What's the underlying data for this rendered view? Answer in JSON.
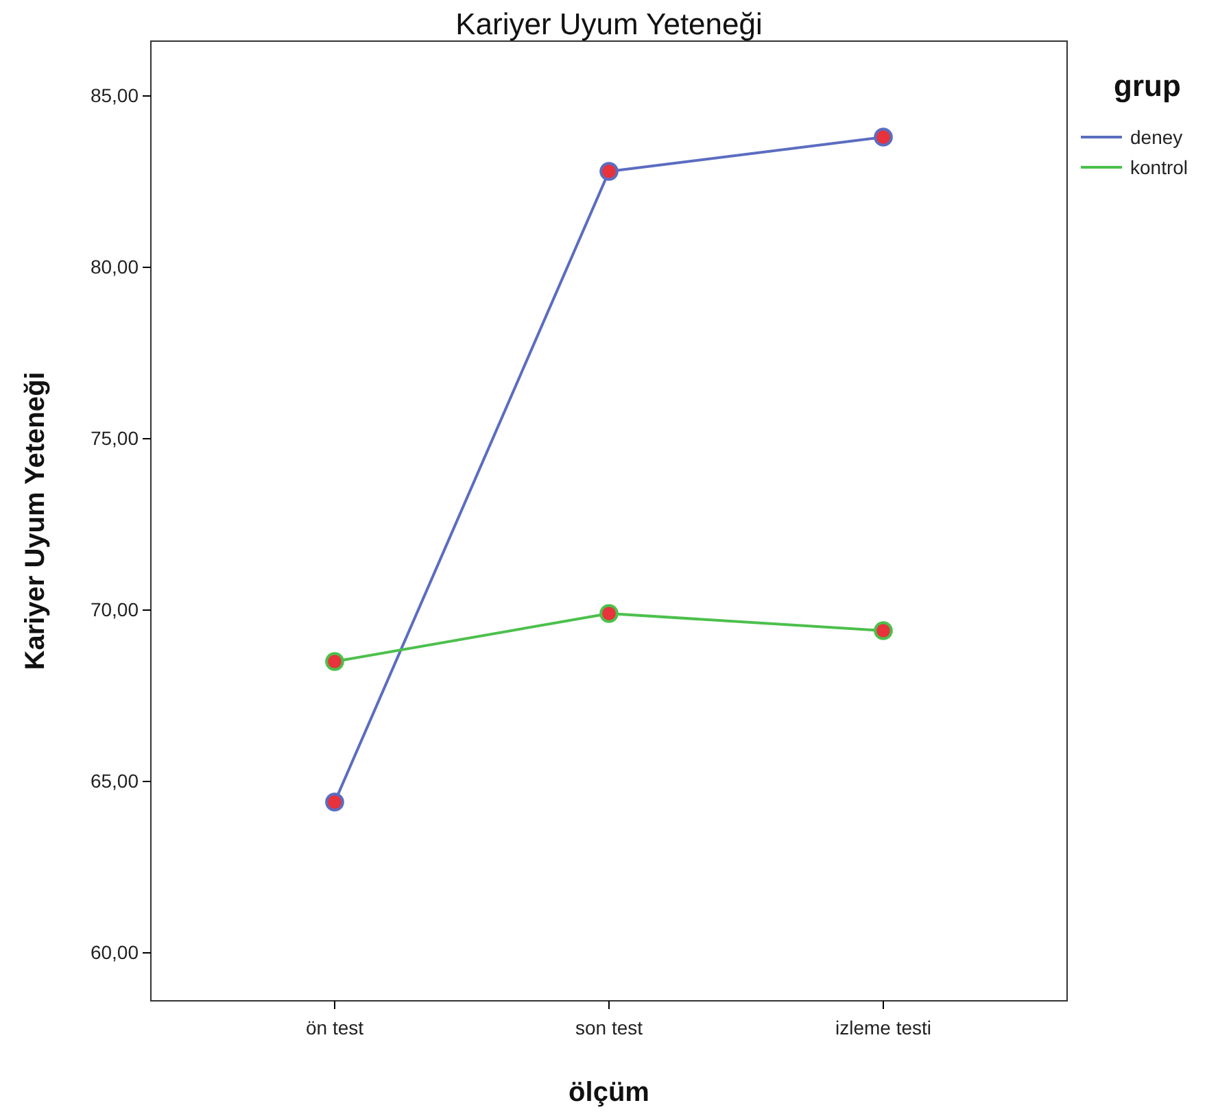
{
  "chart_data": {
    "type": "line",
    "title": "Kariyer Uyum Yeteneği",
    "xlabel": "ölçüm",
    "ylabel": "Kariyer Uyum Yeteneği",
    "legend_title": "grup",
    "categories": [
      "ön test",
      "son test",
      "izleme testi"
    ],
    "series": [
      {
        "name": "deney",
        "color": "#5b6dc0",
        "values": [
          64.4,
          82.8,
          83.8
        ]
      },
      {
        "name": "kontrol",
        "color": "#4cc04c",
        "values": [
          68.5,
          69.9,
          69.4
        ]
      }
    ],
    "ylim": [
      58.6,
      86.6
    ],
    "yticks": [
      {
        "value": 60,
        "label": "60,00"
      },
      {
        "value": 65,
        "label": "65,00"
      },
      {
        "value": 70,
        "label": "70,00"
      },
      {
        "value": 75,
        "label": "75,00"
      },
      {
        "value": 80,
        "label": "80,00"
      },
      {
        "value": 85,
        "label": "85,00"
      }
    ],
    "grid": false,
    "legend": "top right",
    "marker": "circle",
    "line_style": "solid"
  }
}
